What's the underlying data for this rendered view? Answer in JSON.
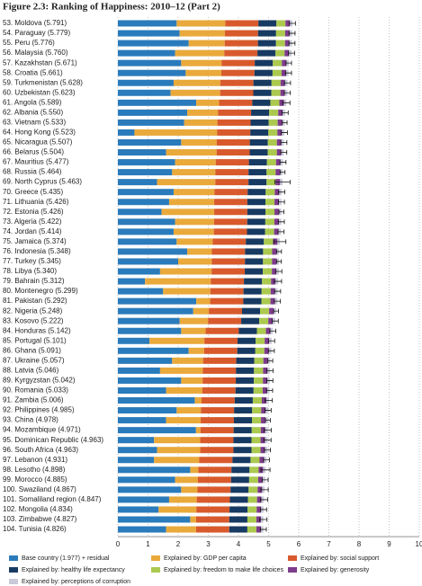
{
  "chart_data": {
    "type": "stacked-bar-horizontal",
    "title": "Figure 2.3: Ranking of Happiness: 2010–12 (Part 2)",
    "categories": [
      "53. Moldova (5.791)",
      "54. Paraguay (5.779)",
      "55. Peru (5.776)",
      "56. Malaysia (5.760)",
      "57. Kazakhstan (5.671)",
      "58. Croatia (5.661)",
      "59. Turkmenistan (5.628)",
      "60. Uzbekistan (5.623)",
      "61. Angola (5.589)",
      "62. Albania (5.550)",
      "63. Vietnam (5.533)",
      "64. Hong Kong (5.523)",
      "65. Nicaragua (5.507)",
      "66. Belarus (5.504)",
      "67. Mauritius (5.477)",
      "68. Russia (5.464)",
      "69. North Cyprus (5.463)",
      "70. Greece (5.435)",
      "71. Lithuania (5.426)",
      "72. Estonia (5.426)",
      "73. Algeria (5.422)",
      "74. Jordan (5.414)",
      "75. Jamaica (5.374)",
      "76. Indonesia (5.348)",
      "77. Turkey (5.345)",
      "78. Libya (5.340)",
      "79. Bahrain (5.312)",
      "80. Montenegro (5.299)",
      "81. Pakistan (5.292)",
      "82. Nigeria (5.248)",
      "83. Kosovo (5.222)",
      "84. Honduras (5.142)",
      "85. Portugal (5.101)",
      "86. Ghana (5.091)",
      "87. Ukraine (5.057)",
      "88. Latvia (5.046)",
      "89. Kyrgyzstan (5.042)",
      "90. Romania (5.033)",
      "91. Zambia (5.006)",
      "92. Philippines (4.985)",
      "93. China (4.978)",
      "94. Mozambique (4.971)",
      "95. Dominican Republic (4.963)",
      "96. South Africa (4.963)",
      "97. Lebanon (4.931)",
      "98. Lesotho (4.898)",
      "99. Morocco (4.885)",
      "100. Swaziland (4.867)",
      "101. Somaliland region (4.847)",
      "102. Mongolia (4.834)",
      "103. Zimbabwe (4.827)",
      "104. Tunisia (4.826)"
    ],
    "series": [
      {
        "name": "Base country (1.977) + residual",
        "color": "#2a7bbb",
        "values": [
          1.95,
          2.05,
          2.35,
          1.9,
          2.1,
          2.25,
          1.85,
          1.75,
          2.6,
          2.3,
          2.2,
          0.55,
          2.1,
          1.6,
          1.9,
          1.8,
          1.3,
          1.85,
          1.7,
          1.45,
          1.9,
          1.85,
          1.95,
          2.3,
          2.0,
          1.4,
          0.9,
          1.5,
          2.6,
          2.5,
          2.05,
          2.1,
          1.05,
          2.35,
          1.8,
          1.4,
          2.1,
          1.6,
          2.55,
          1.95,
          1.6,
          2.591,
          1.2,
          1.3,
          1.2,
          2.4,
          1.9,
          2.1,
          1.7,
          1.35,
          2.4,
          1.6
        ]
      },
      {
        "name": "Explained by: GDP per capita",
        "color": "#e9a93b",
        "values": [
          1.611,
          1.499,
          1.196,
          1.63,
          1.341,
          1.181,
          1.548,
          1.643,
          0.759,
          1.02,
          1.103,
          2.743,
          1.177,
          1.674,
          1.347,
          1.434,
          1.933,
          1.355,
          1.496,
          1.746,
          1.292,
          1.334,
          1.194,
          0.818,
          1.115,
          1.71,
          2.182,
          1.569,
          0.462,
          0.518,
          0.942,
          0.812,
          1.821,
          0.511,
          1.027,
          1.416,
          0.712,
          1.203,
          0.226,
          0.805,
          1.148,
          0.15,
          1.533,
          1.433,
          1.501,
          0.268,
          0.755,
          0.537,
          0.917,
          1.254,
          0.197,
          0.996
        ]
      },
      {
        "name": "Explained by: social support",
        "color": "#d85a2c",
        "values": [
          1.1,
          1.1,
          1.1,
          1.1,
          1.1,
          1.1,
          1.1,
          1.1,
          1.1,
          1.1,
          1.1,
          1.1,
          1.1,
          1.1,
          1.1,
          1.1,
          1.1,
          1.1,
          1.1,
          1.1,
          1.1,
          1.1,
          1.1,
          1.1,
          1.1,
          1.1,
          1.1,
          1.1,
          1.1,
          1.1,
          1.1,
          1.1,
          1.1,
          1.1,
          1.1,
          1.1,
          1.1,
          1.1,
          1.1,
          1.1,
          1.1,
          1.1,
          1.1,
          1.1,
          1.1,
          1.1,
          1.1,
          1.1,
          1.1,
          1.1,
          1.1,
          1.1
        ]
      },
      {
        "name": "Explained by: healthy life expectancy",
        "color": "#173a62",
        "values": [
          0.6,
          0.6,
          0.6,
          0.6,
          0.6,
          0.6,
          0.6,
          0.6,
          0.6,
          0.6,
          0.6,
          0.6,
          0.6,
          0.6,
          0.6,
          0.6,
          0.6,
          0.6,
          0.6,
          0.6,
          0.6,
          0.6,
          0.6,
          0.6,
          0.6,
          0.6,
          0.6,
          0.6,
          0.6,
          0.6,
          0.6,
          0.6,
          0.6,
          0.6,
          0.6,
          0.6,
          0.6,
          0.6,
          0.6,
          0.6,
          0.6,
          0.6,
          0.6,
          0.6,
          0.6,
          0.6,
          0.6,
          0.6,
          0.6,
          0.6,
          0.6,
          0.6
        ]
      },
      {
        "name": "Explained by: freedom to make life choices",
        "color": "#abc94f",
        "values": [
          0.3,
          0.3,
          0.3,
          0.3,
          0.3,
          0.3,
          0.3,
          0.3,
          0.3,
          0.3,
          0.3,
          0.3,
          0.3,
          0.3,
          0.3,
          0.3,
          0.3,
          0.3,
          0.3,
          0.3,
          0.3,
          0.3,
          0.3,
          0.3,
          0.3,
          0.3,
          0.3,
          0.3,
          0.3,
          0.3,
          0.3,
          0.3,
          0.3,
          0.3,
          0.3,
          0.3,
          0.3,
          0.3,
          0.3,
          0.3,
          0.3,
          0.3,
          0.3,
          0.3,
          0.3,
          0.3,
          0.3,
          0.3,
          0.3,
          0.3,
          0.3,
          0.3
        ]
      },
      {
        "name": "Explained by: generosity",
        "color": "#7d3b8c",
        "values": [
          0.15,
          0.15,
          0.15,
          0.15,
          0.15,
          0.15,
          0.15,
          0.15,
          0.15,
          0.15,
          0.15,
          0.15,
          0.15,
          0.15,
          0.15,
          0.15,
          0.15,
          0.15,
          0.15,
          0.15,
          0.15,
          0.15,
          0.15,
          0.15,
          0.15,
          0.15,
          0.15,
          0.15,
          0.15,
          0.15,
          0.15,
          0.15,
          0.15,
          0.15,
          0.15,
          0.15,
          0.15,
          0.15,
          0.15,
          0.15,
          0.15,
          0.15,
          0.15,
          0.15,
          0.15,
          0.15,
          0.15,
          0.15,
          0.15,
          0.15,
          0.15,
          0.15
        ]
      },
      {
        "name": "Explained by: perceptions of corruption",
        "color": "#c8cad8",
        "values": [
          0.08,
          0.08,
          0.08,
          0.08,
          0.08,
          0.08,
          0.08,
          0.08,
          0.08,
          0.08,
          0.08,
          0.08,
          0.08,
          0.08,
          0.08,
          0.08,
          0.08,
          0.08,
          0.08,
          0.08,
          0.08,
          0.08,
          0.08,
          0.08,
          0.08,
          0.08,
          0.08,
          0.08,
          0.08,
          0.08,
          0.08,
          0.08,
          0.08,
          0.08,
          0.08,
          0.08,
          0.08,
          0.08,
          0.08,
          0.08,
          0.08,
          0.08,
          0.08,
          0.08,
          0.08,
          0.08,
          0.08,
          0.08,
          0.08,
          0.08,
          0.08,
          0.08
        ]
      }
    ],
    "errors": [
      0.1,
      0.1,
      0.1,
      0.1,
      0.09,
      0.1,
      0.1,
      0.1,
      0.12,
      0.1,
      0.08,
      0.1,
      0.1,
      0.1,
      0.1,
      0.08,
      0.25,
      0.1,
      0.1,
      0.08,
      0.1,
      0.1,
      0.2,
      0.08,
      0.08,
      0.1,
      0.12,
      0.1,
      0.1,
      0.08,
      0.1,
      0.1,
      0.1,
      0.1,
      0.08,
      0.1,
      0.1,
      0.1,
      0.12,
      0.1,
      0.08,
      0.12,
      0.12,
      0.1,
      0.1,
      0.15,
      0.1,
      0.12,
      0.12,
      0.1,
      0.12,
      0.1
    ],
    "xlim": [
      0,
      10
    ],
    "xticks": [
      0,
      1,
      2,
      3,
      4,
      5,
      6,
      7,
      8,
      9,
      10
    ],
    "grid": true
  }
}
